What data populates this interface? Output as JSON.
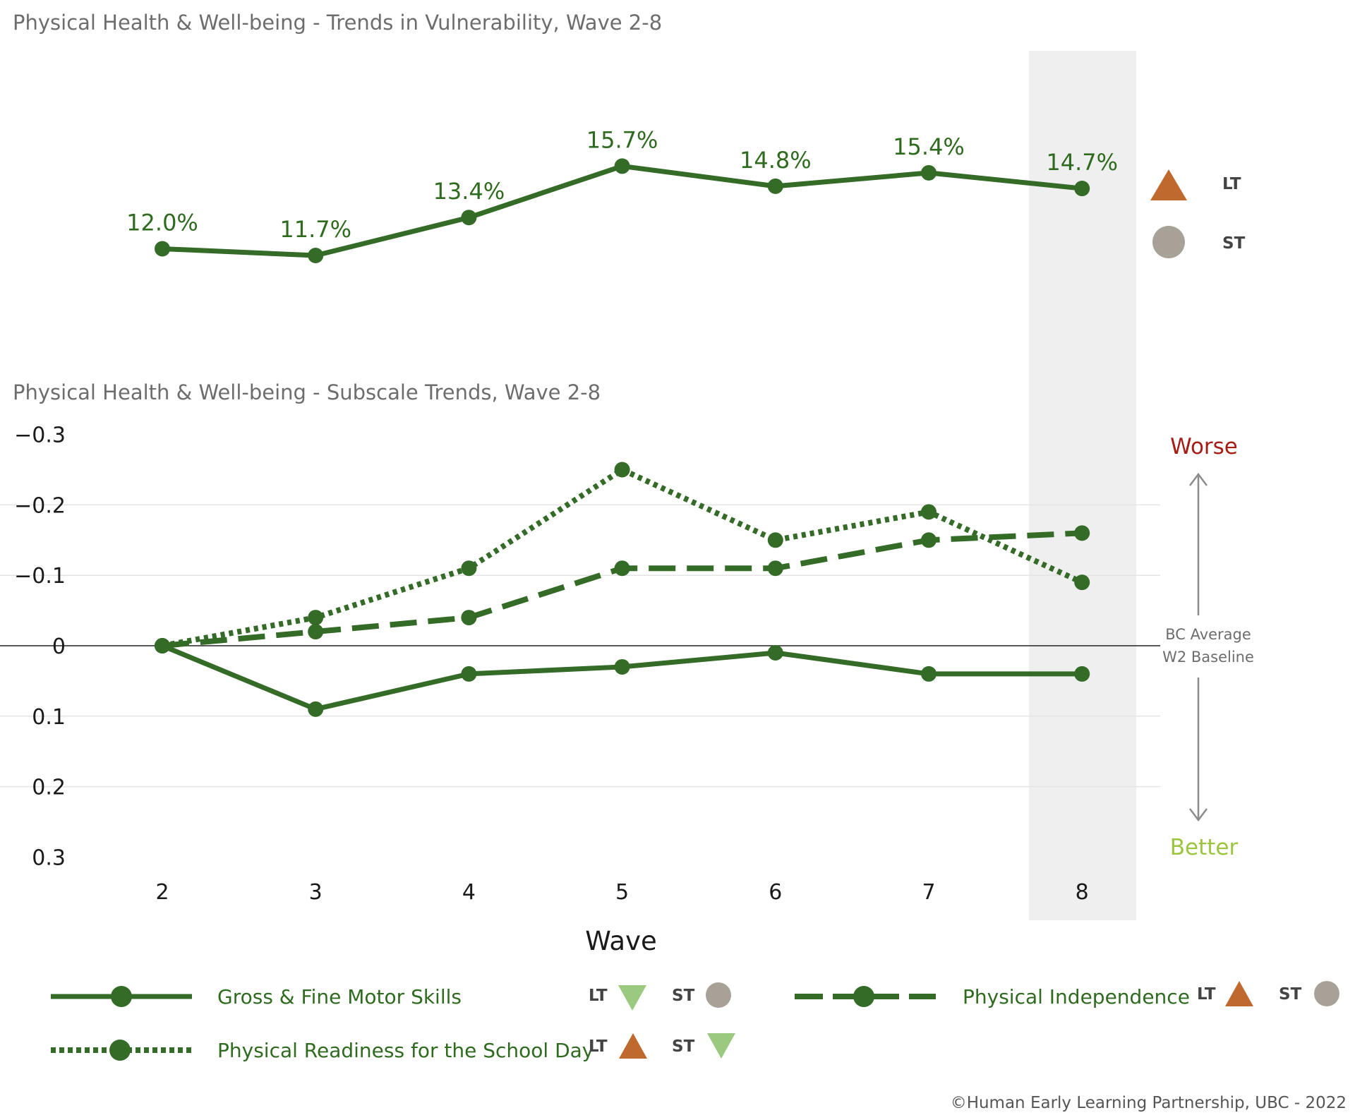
{
  "copyright": "©Human Early Learning Partnership, UBC - 2022",
  "colors": {
    "line": "#336b27",
    "highlight_band": "#efefef",
    "lt_up": "#c0692f",
    "st_neutral": "#a8a197",
    "st_down": "#9bc97f",
    "worse": "#a51d14",
    "better": "#9bc53d"
  },
  "chart_data": [
    {
      "type": "line",
      "title": "Physical Health & Well-being - Trends in Vulnerability, Wave 2-8",
      "x": [
        2,
        3,
        4,
        5,
        6,
        7,
        8
      ],
      "values": [
        12.0,
        11.7,
        13.4,
        15.7,
        14.8,
        15.4,
        14.7
      ],
      "data_labels": [
        "12.0%",
        "11.7%",
        "13.4%",
        "15.7%",
        "14.8%",
        "15.4%",
        "14.7%"
      ],
      "highlight_x": 8,
      "trend_indicators": [
        {
          "label": "LT",
          "shape": "triangle-up",
          "color": "orange"
        },
        {
          "label": "ST",
          "shape": "circle",
          "color": "gray"
        }
      ]
    },
    {
      "type": "line",
      "title": "Physical Health & Well-being - Subscale Trends, Wave 2-8",
      "xlabel": "Wave",
      "x": [
        2,
        3,
        4,
        5,
        6,
        7,
        8
      ],
      "x_ticks": [
        "2",
        "3",
        "4",
        "5",
        "6",
        "7",
        "8"
      ],
      "y_ticks": [
        "−0.3",
        "−0.2",
        "−0.1",
        "0",
        "0.1",
        "0.2",
        "0.3"
      ],
      "ylim": [
        0.3,
        -0.3
      ],
      "y_inverted": true,
      "baseline_label": [
        "BC Average",
        "W2 Baseline"
      ],
      "direction_labels": {
        "up": "Worse",
        "down": "Better"
      },
      "highlight_x": 8,
      "series": [
        {
          "name": "Gross & Fine Motor Skills",
          "style": "solid",
          "values": [
            0,
            0.09,
            0.04,
            0.03,
            0.01,
            0.04,
            0.04
          ],
          "lt": {
            "label": "LT",
            "shape": "triangle-down",
            "color": "light-green"
          },
          "st": {
            "label": "ST",
            "shape": "circle",
            "color": "gray"
          }
        },
        {
          "name": "Physical Readiness for the School Day",
          "style": "dotted",
          "values": [
            0,
            -0.04,
            -0.11,
            -0.25,
            -0.15,
            -0.19,
            -0.09
          ],
          "lt": {
            "label": "LT",
            "shape": "triangle-up",
            "color": "orange"
          },
          "st": {
            "label": "ST",
            "shape": "triangle-down",
            "color": "light-green"
          }
        },
        {
          "name": "Physical Independence",
          "style": "dashed",
          "values": [
            0,
            -0.02,
            -0.04,
            -0.11,
            -0.11,
            -0.15,
            -0.16
          ],
          "lt": {
            "label": "LT",
            "shape": "triangle-up",
            "color": "orange"
          },
          "st": {
            "label": "ST",
            "shape": "circle",
            "color": "gray"
          }
        }
      ]
    }
  ]
}
